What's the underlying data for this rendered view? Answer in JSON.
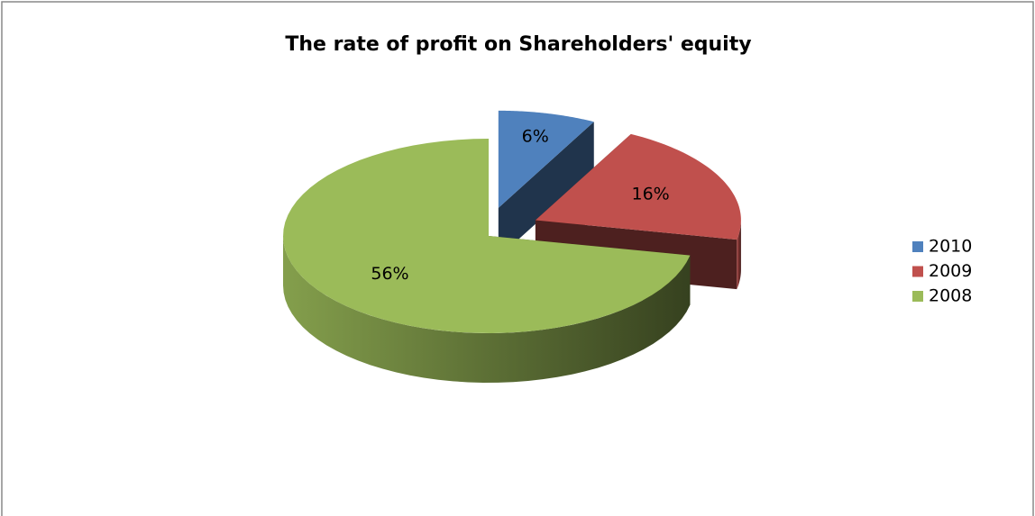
{
  "chart_data": {
    "type": "pie",
    "title": "The rate of profit on Shareholders' equity",
    "categories": [
      "2010",
      "2009",
      "2008"
    ],
    "values": [
      6,
      16,
      56
    ],
    "value_labels": [
      "6%",
      "16%",
      "56%"
    ],
    "colors": [
      "#4f81bd",
      "#c0504d",
      "#9bbb59"
    ],
    "legend": "right"
  }
}
